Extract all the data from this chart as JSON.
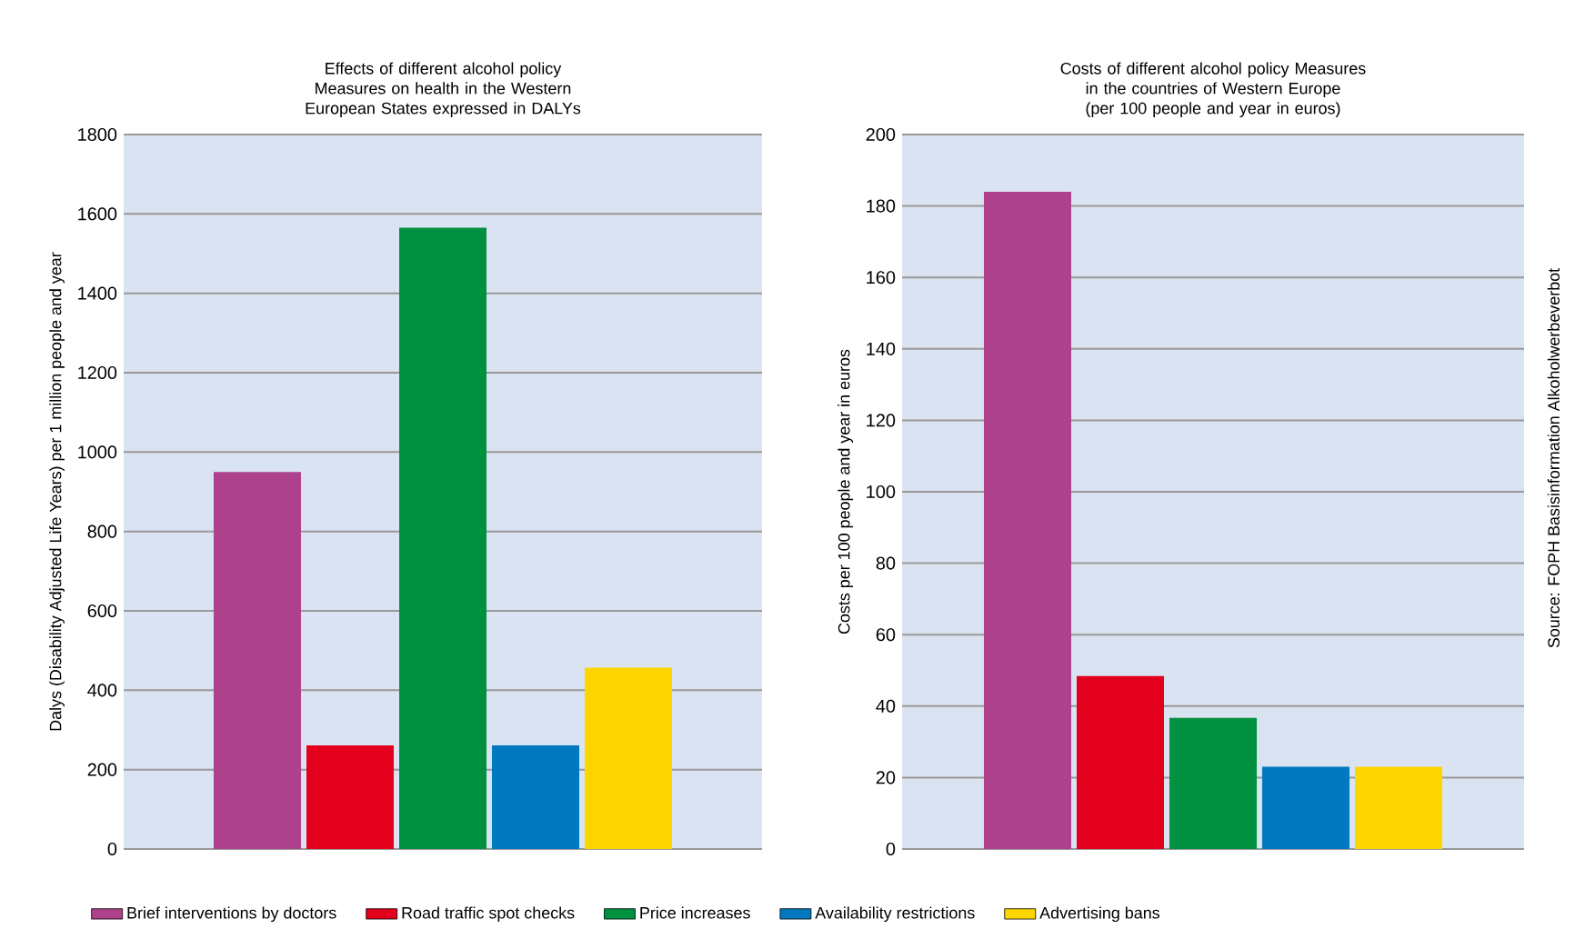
{
  "chart_data": [
    {
      "type": "bar",
      "title": "Effects of different alcohol policy Measures on health in the Western European States expressed in DALYs",
      "ylabel": "Dalys (Disability Adjusted Life Years) per 1 million people and year",
      "categories": [
        null
      ],
      "ylim": [
        0,
        1800
      ],
      "yticks": [
        0,
        200,
        400,
        600,
        800,
        1000,
        1200,
        1400,
        1600,
        1800
      ],
      "grid": "y",
      "legend": "bottom",
      "series": [
        {
          "name": "Brief interventions by doctors",
          "color": "#ad418b",
          "values": [
            950
          ]
        },
        {
          "name": "Road traffic spot checks",
          "color": "#e2001c",
          "values": [
            261
          ]
        },
        {
          "name": "Price increases",
          "color": "#009140",
          "values": [
            1565
          ]
        },
        {
          "name": "Availability restrictions",
          "color": "#0079c1",
          "values": [
            261
          ]
        },
        {
          "name": "Advertising bans",
          "color": "#fdd500",
          "values": [
            457
          ]
        }
      ]
    },
    {
      "type": "bar",
      "title": "Costs of different alcohol policy Measures in the countries of Western Europe (per 100 people and year in euros)",
      "ylabel": "Costs per 100 people and year in euros",
      "categories": [
        null
      ],
      "ylim": [
        0,
        200
      ],
      "yticks": [
        0,
        20,
        40,
        60,
        80,
        100,
        120,
        140,
        160,
        180,
        200
      ],
      "grid": "y",
      "annotations": [
        "Source: FOPH Basisinformation Alkoholwerbeverbot"
      ],
      "series": [
        {
          "color": "#ad418b",
          "values": [
            184
          ]
        },
        {
          "color": "#e2001c",
          "values": [
            48.4
          ]
        },
        {
          "color": "#009140",
          "values": [
            36.7
          ]
        },
        {
          "color": "#0079c1",
          "values": [
            23
          ]
        },
        {
          "color": "#fdd500",
          "values": [
            23
          ]
        }
      ]
    }
  ]
}
